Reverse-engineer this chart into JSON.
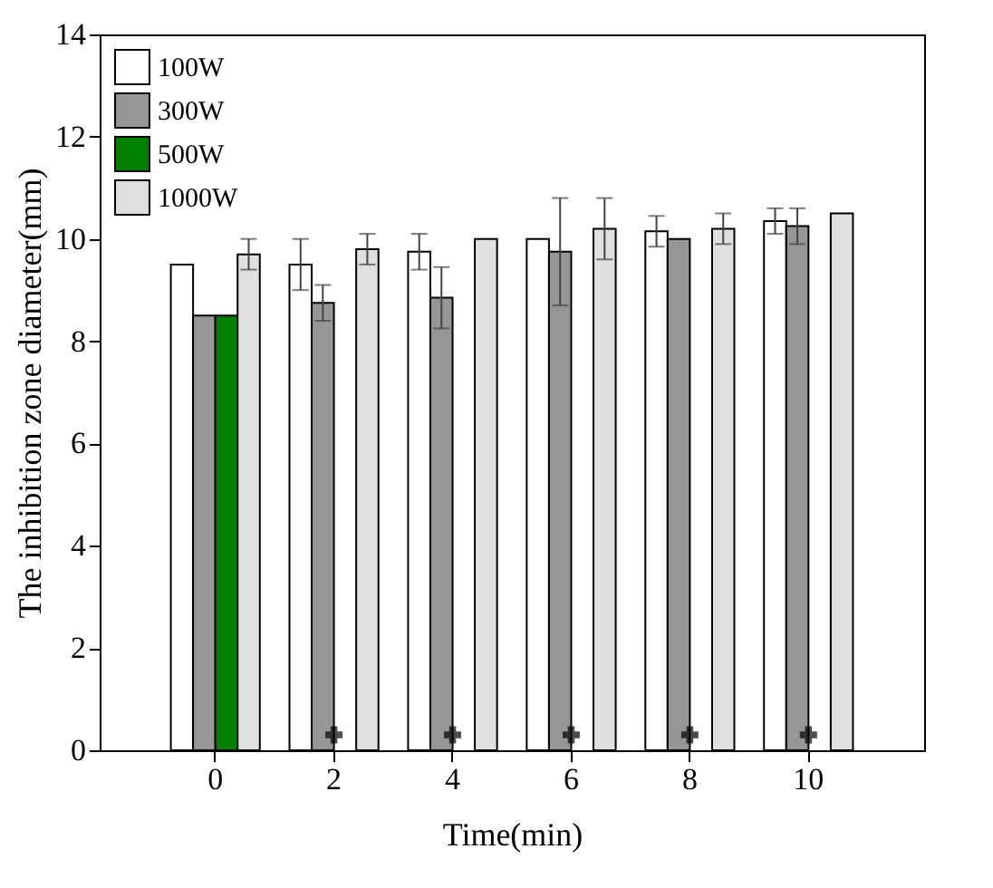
{
  "chart_data": {
    "type": "bar",
    "xlabel": "Time(min)",
    "ylabel": "The inhibition zone diameter(mm)",
    "categories": [
      "0",
      "2",
      "4",
      "6",
      "8",
      "10"
    ],
    "ylim": [
      0,
      14
    ],
    "yticks": [
      0,
      2,
      4,
      6,
      8,
      10,
      12,
      14
    ],
    "grid": false,
    "legend": "top left",
    "series": [
      {
        "name": "100W",
        "color": "#ffffff",
        "values": [
          9.5,
          9.5,
          9.75,
          10.0,
          10.15,
          10.35
        ],
        "errors": [
          null,
          0.5,
          0.35,
          null,
          0.3,
          0.25
        ]
      },
      {
        "name": "300W",
        "color": "#969696",
        "values": [
          8.5,
          8.75,
          8.85,
          9.75,
          10.0,
          10.25
        ],
        "errors": [
          null,
          0.35,
          0.6,
          1.05,
          null,
          0.35
        ]
      },
      {
        "name": "500W",
        "color": "#007f00",
        "values": [
          8.5,
          null,
          null,
          null,
          null,
          null
        ]
      },
      {
        "name": "1000W",
        "color": "#e0e0e0",
        "values": [
          9.7,
          9.8,
          10.0,
          10.2,
          10.2,
          10.5
        ],
        "errors": [
          0.3,
          0.3,
          null,
          0.6,
          0.3,
          null
        ]
      },
      {
        "type": "scatter",
        "color": "#000000",
        "marker": "cross",
        "x": [
          "2",
          "4",
          "6",
          "8",
          "10"
        ],
        "values": [
          0.3,
          0.3,
          0.3,
          0.3,
          0.3
        ]
      }
    ]
  }
}
